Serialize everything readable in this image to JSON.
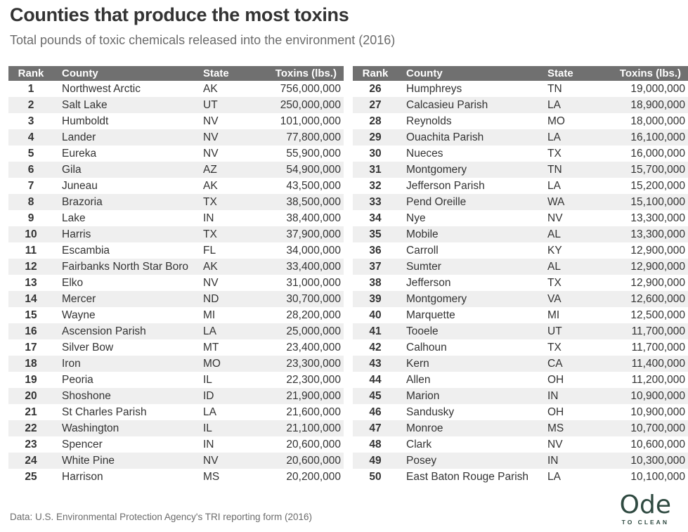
{
  "title": "Counties that produce the most toxins",
  "subtitle": "Total pounds of toxic chemicals released into the environment (2016)",
  "source": "Data: U.S. Environmental Protection Agency's TRI reporting form (2016)",
  "logo": {
    "main": "Ode",
    "sub": "TO CLEAN"
  },
  "colors": {
    "header_bg": "#707070",
    "row_shade": "#efefef",
    "logo": "#2f4a41"
  },
  "chart_data": {
    "type": "table",
    "columns": [
      "Rank",
      "County",
      "State",
      "Toxins (lbs.)"
    ],
    "rows": [
      [
        "1",
        "Northwest Arctic",
        "AK",
        "756,000,000"
      ],
      [
        "2",
        "Salt Lake",
        "UT",
        "250,000,000"
      ],
      [
        "3",
        "Humboldt",
        "NV",
        "101,000,000"
      ],
      [
        "4",
        "Lander",
        "NV",
        "77,800,000"
      ],
      [
        "5",
        "Eureka",
        "NV",
        "55,900,000"
      ],
      [
        "6",
        "Gila",
        "AZ",
        "54,900,000"
      ],
      [
        "7",
        "Juneau",
        "AK",
        "43,500,000"
      ],
      [
        "8",
        "Brazoria",
        "TX",
        "38,500,000"
      ],
      [
        "9",
        "Lake",
        "IN",
        "38,400,000"
      ],
      [
        "10",
        "Harris",
        "TX",
        "37,900,000"
      ],
      [
        "11",
        "Escambia",
        "FL",
        "34,000,000"
      ],
      [
        "12",
        "Fairbanks North Star Boro",
        "AK",
        "33,400,000"
      ],
      [
        "13",
        "Elko",
        "NV",
        "31,000,000"
      ],
      [
        "14",
        "Mercer",
        "ND",
        "30,700,000"
      ],
      [
        "15",
        "Wayne",
        "MI",
        "28,200,000"
      ],
      [
        "16",
        "Ascension Parish",
        "LA",
        "25,000,000"
      ],
      [
        "17",
        "Silver Bow",
        "MT",
        "23,400,000"
      ],
      [
        "18",
        "Iron",
        "MO",
        "23,300,000"
      ],
      [
        "19",
        "Peoria",
        "IL",
        "22,300,000"
      ],
      [
        "20",
        "Shoshone",
        "ID",
        "21,900,000"
      ],
      [
        "21",
        "St Charles Parish",
        "LA",
        "21,600,000"
      ],
      [
        "22",
        "Washington",
        "IL",
        "21,100,000"
      ],
      [
        "23",
        "Spencer",
        "IN",
        "20,600,000"
      ],
      [
        "24",
        "White Pine",
        "NV",
        "20,600,000"
      ],
      [
        "25",
        "Harrison",
        "MS",
        "20,200,000"
      ],
      [
        "26",
        "Humphreys",
        "TN",
        "19,000,000"
      ],
      [
        "27",
        "Calcasieu Parish",
        "LA",
        "18,900,000"
      ],
      [
        "28",
        "Reynolds",
        "MO",
        "18,000,000"
      ],
      [
        "29",
        "Ouachita Parish",
        "LA",
        "16,100,000"
      ],
      [
        "30",
        "Nueces",
        "TX",
        "16,000,000"
      ],
      [
        "31",
        "Montgomery",
        "TN",
        "15,700,000"
      ],
      [
        "32",
        "Jefferson Parish",
        "LA",
        "15,200,000"
      ],
      [
        "33",
        "Pend Oreille",
        "WA",
        "15,100,000"
      ],
      [
        "34",
        "Nye",
        "NV",
        "13,300,000"
      ],
      [
        "35",
        "Mobile",
        "AL",
        "13,300,000"
      ],
      [
        "36",
        "Carroll",
        "KY",
        "12,900,000"
      ],
      [
        "37",
        "Sumter",
        "AL",
        "12,900,000"
      ],
      [
        "38",
        "Jefferson",
        "TX",
        "12,900,000"
      ],
      [
        "39",
        "Montgomery",
        "VA",
        "12,600,000"
      ],
      [
        "40",
        "Marquette",
        "MI",
        "12,500,000"
      ],
      [
        "41",
        "Tooele",
        "UT",
        "11,700,000"
      ],
      [
        "42",
        "Calhoun",
        "TX",
        "11,700,000"
      ],
      [
        "43",
        "Kern",
        "CA",
        "11,400,000"
      ],
      [
        "44",
        "Allen",
        "OH",
        "11,200,000"
      ],
      [
        "45",
        "Marion",
        "IN",
        "10,900,000"
      ],
      [
        "46",
        "Sandusky",
        "OH",
        "10,900,000"
      ],
      [
        "47",
        "Monroe",
        "MS",
        "10,700,000"
      ],
      [
        "48",
        "Clark",
        "NV",
        "10,600,000"
      ],
      [
        "49",
        "Posey",
        "IN",
        "10,300,000"
      ],
      [
        "50",
        "East Baton Rouge Parish",
        "LA",
        "10,100,000"
      ]
    ]
  }
}
